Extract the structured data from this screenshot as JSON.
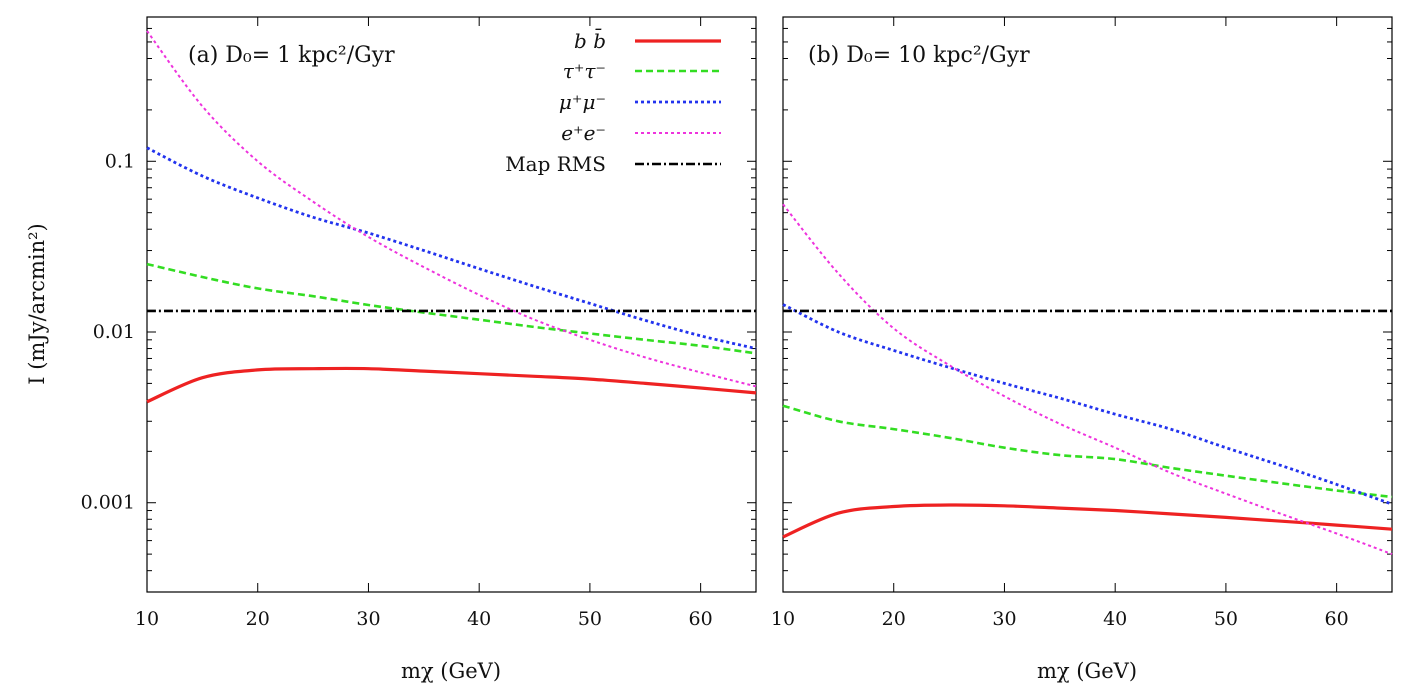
{
  "chart_data": [
    {
      "type": "line",
      "title": "(a) D₀= 1 kpc²/Gyr",
      "xlabel": "mχ (GeV)",
      "ylabel": "I (mJy/arcmin²)",
      "xlim": [
        10,
        65
      ],
      "ylim": [
        0.0003,
        0.7
      ],
      "yscale": "log",
      "xticks": [
        10,
        20,
        30,
        40,
        50,
        60
      ],
      "yticks": [
        0.001,
        0.01,
        0.1
      ],
      "ytick_labels": [
        "0.001",
        "0.01",
        "0.1"
      ],
      "grid": false,
      "legend_position": "top-right",
      "x": [
        10,
        15,
        20,
        25,
        30,
        35,
        40,
        45,
        50,
        55,
        60,
        65
      ],
      "series": [
        {
          "name": "b b̄",
          "color": "#ee2222",
          "dash": "solid",
          "width": 3.2,
          "values": [
            0.0039,
            0.0054,
            0.006,
            0.0061,
            0.0061,
            0.0059,
            0.0057,
            0.0055,
            0.0053,
            0.005,
            0.0047,
            0.0044
          ]
        },
        {
          "name": "τ⁺τ⁻",
          "color": "#33dd22",
          "dash": "dashed",
          "width": 2.6,
          "values": [
            0.025,
            0.021,
            0.018,
            0.0162,
            0.0144,
            0.013,
            0.0118,
            0.0107,
            0.0098,
            0.009,
            0.0083,
            0.0075
          ]
        },
        {
          "name": "μ⁺μ⁻",
          "color": "#2233ee",
          "dash": "dotted",
          "width": 2.8,
          "values": [
            0.12,
            0.082,
            0.061,
            0.047,
            0.038,
            0.03,
            0.0235,
            0.0185,
            0.0147,
            0.0117,
            0.0095,
            0.008
          ]
        },
        {
          "name": "e⁺e⁻",
          "color": "#ee33dd",
          "dash": "dotted",
          "width": 2.0,
          "values": [
            0.58,
            0.21,
            0.1,
            0.058,
            0.036,
            0.024,
            0.0165,
            0.0118,
            0.009,
            0.0071,
            0.0058,
            0.0048
          ]
        },
        {
          "name": "Map RMS",
          "color": "#000000",
          "dash": "dashdot",
          "width": 2.6,
          "values": [
            0.0133,
            0.0133,
            0.0133,
            0.0133,
            0.0133,
            0.0133,
            0.0133,
            0.0133,
            0.0133,
            0.0133,
            0.0133,
            0.0133
          ]
        }
      ]
    },
    {
      "type": "line",
      "title": "(b) D₀= 10 kpc²/Gyr",
      "xlabel": "mχ (GeV)",
      "xlim": [
        10,
        65
      ],
      "ylim": [
        0.0003,
        0.7
      ],
      "yscale": "log",
      "xticks": [
        10,
        20,
        30,
        40,
        50,
        60
      ],
      "grid": false,
      "x": [
        10,
        15,
        20,
        25,
        30,
        35,
        40,
        45,
        50,
        55,
        60,
        65
      ],
      "series": [
        {
          "name": "b b̄",
          "color": "#ee2222",
          "dash": "solid",
          "width": 3.2,
          "values": [
            0.00063,
            0.00087,
            0.00095,
            0.00097,
            0.00096,
            0.00093,
            0.0009,
            0.00086,
            0.00082,
            0.00078,
            0.00074,
            0.0007
          ]
        },
        {
          "name": "τ⁺τ⁻",
          "color": "#33dd22",
          "dash": "dashed",
          "width": 2.6,
          "values": [
            0.0037,
            0.003,
            0.0027,
            0.0024,
            0.0021,
            0.0019,
            0.0018,
            0.0016,
            0.00144,
            0.0013,
            0.00118,
            0.00108
          ]
        },
        {
          "name": "μ⁺μ⁻",
          "color": "#2233ee",
          "dash": "dotted",
          "width": 2.8,
          "values": [
            0.0145,
            0.01,
            0.0078,
            0.0062,
            0.005,
            0.0041,
            0.0033,
            0.0027,
            0.0021,
            0.00165,
            0.00128,
            0.00098
          ]
        },
        {
          "name": "e⁺e⁻",
          "color": "#ee33dd",
          "dash": "dotted",
          "width": 2.0,
          "values": [
            0.056,
            0.022,
            0.0105,
            0.0064,
            0.0042,
            0.0029,
            0.0021,
            0.0015,
            0.00113,
            0.00086,
            0.00066,
            0.0005
          ]
        },
        {
          "name": "Map RMS",
          "color": "#000000",
          "dash": "dashdot",
          "width": 2.6,
          "values": [
            0.0133,
            0.0133,
            0.0133,
            0.0133,
            0.0133,
            0.0133,
            0.0133,
            0.0133,
            0.0133,
            0.0133,
            0.0133,
            0.0133
          ]
        }
      ]
    }
  ]
}
